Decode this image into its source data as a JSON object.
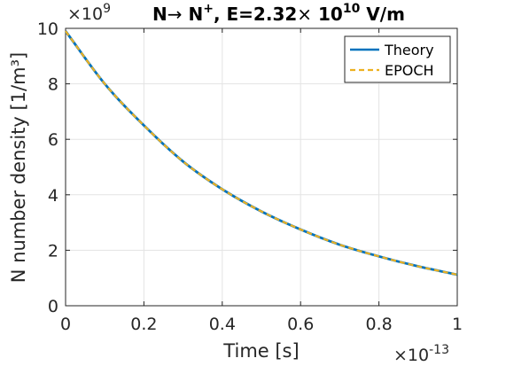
{
  "chart_data": {
    "type": "line",
    "title": {
      "prefix": "N",
      "arrow": "→",
      "product": " N",
      "product_sup": "+",
      "field_label": ", E=2.32",
      "times": "×",
      "base": " 10",
      "exponent": "10",
      "unit": " V/m"
    },
    "xlabel": "Time [s]",
    "ylabel": "N number density [1/m³]",
    "x_multiplier": {
      "base": "×10",
      "exponent": "-13"
    },
    "y_multiplier": {
      "base": "×10",
      "exponent": "9"
    },
    "xlim": [
      0,
      1
    ],
    "ylim": [
      0,
      10
    ],
    "x_ticks": [
      0,
      0.2,
      0.4,
      0.6,
      0.8,
      1
    ],
    "x_tick_labels": [
      "0",
      "0.2",
      "0.4",
      "0.6",
      "0.8",
      "1"
    ],
    "y_ticks": [
      0,
      2,
      4,
      6,
      8,
      10
    ],
    "y_tick_labels": [
      "0",
      "2",
      "4",
      "6",
      "8",
      "10"
    ],
    "grid": true,
    "legend_position": "top-right",
    "x": [
      0,
      0.1,
      0.2,
      0.3,
      0.4,
      0.5,
      0.6,
      0.7,
      0.8,
      0.9,
      1.0
    ],
    "series": [
      {
        "name": "Theory",
        "color": "#0072BD",
        "style": "solid",
        "values": [
          9.9,
          8.0,
          6.5,
          5.2,
          4.2,
          3.4,
          2.75,
          2.2,
          1.78,
          1.42,
          1.12
        ]
      },
      {
        "name": "EPOCH",
        "color": "#EDB120",
        "style": "dashed",
        "values": [
          9.9,
          8.0,
          6.5,
          5.2,
          4.2,
          3.4,
          2.75,
          2.2,
          1.78,
          1.42,
          1.12
        ]
      }
    ]
  }
}
